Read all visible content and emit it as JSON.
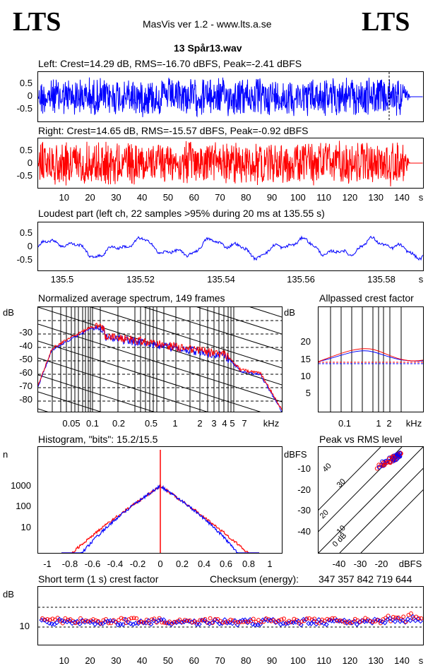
{
  "header": {
    "logo_left": "LTS",
    "logo_right": "LTS",
    "app_line": "MasVis ver 1.2 - www.lts.a.se",
    "file_title": "13 Spår13.wav"
  },
  "colors": {
    "left": "#0000ff",
    "right": "#ff0000",
    "grid": "#000000"
  },
  "left_panel": {
    "title": "Left: Crest=14.29 dB, RMS=-16.70 dBFS, Peak=-2.41 dBFS",
    "yticks": [
      "0.5",
      "0",
      "-0.5"
    ]
  },
  "right_panel": {
    "title": "Right: Crest=14.65 dB, RMS=-15.57 dBFS, Peak=-0.92 dBFS",
    "yticks": [
      "0.5",
      "0",
      "-0.5"
    ],
    "xticks": [
      "10",
      "20",
      "30",
      "40",
      "50",
      "60",
      "70",
      "80",
      "90",
      "100",
      "110",
      "120",
      "130",
      "140",
      "s"
    ]
  },
  "loudest_panel": {
    "title": "Loudest part (left  ch, 22 samples >95% during 20 ms at 135.55 s)",
    "yticks": [
      "0.5",
      "0",
      "-0.5"
    ],
    "xticks": [
      "135.5",
      "135.52",
      "135.54",
      "135.56",
      "135.58",
      "s"
    ]
  },
  "spectrum_panel": {
    "title": "Normalized average spectrum, 149 frames",
    "ylabel": "dB",
    "yticks": [
      "-30",
      "-40",
      "-50",
      "-60",
      "-70",
      "-80"
    ],
    "xticks": [
      "0.05",
      "0.1",
      "0.2",
      "0.5",
      "1",
      "2",
      "3",
      "4",
      "5",
      "7",
      "kHz"
    ]
  },
  "allpass_panel": {
    "title": "Allpassed crest factor",
    "ylabel": "dB",
    "yticks": [
      "20",
      "15",
      "10",
      "5"
    ],
    "xticks": [
      "0.1",
      "1",
      "2",
      "kHz"
    ]
  },
  "histogram_panel": {
    "title": "Histogram, \"bits\": 15.2/15.5",
    "ylabel": "n",
    "yticks": [
      "1000",
      "100",
      "10"
    ],
    "xticks": [
      "-1",
      "-0.8",
      "-0.6",
      "-0.4",
      "-0.2",
      "0",
      "0.2",
      "0.4",
      "0.6",
      "0.8",
      "1"
    ]
  },
  "peakrms_panel": {
    "title": "Peak vs RMS level",
    "ylabel": "dBFS",
    "yticks": [
      "-10",
      "-20",
      "-30",
      "-40"
    ],
    "xticks": [
      "-40",
      "-30",
      "-20",
      "dBFS"
    ],
    "diag_labels": [
      "40",
      "30",
      "20",
      "10",
      "0 dB"
    ]
  },
  "crest_panel": {
    "title": "Short term (1 s) crest factor",
    "checksum_label": "Checksum (energy):",
    "checksum_value": "347 357 842 719 644",
    "ylabel": "dB",
    "yticks": [
      "10"
    ],
    "xticks": [
      "10",
      "20",
      "30",
      "40",
      "50",
      "60",
      "70",
      "80",
      "90",
      "100",
      "110",
      "120",
      "130",
      "140",
      "s"
    ]
  }
}
